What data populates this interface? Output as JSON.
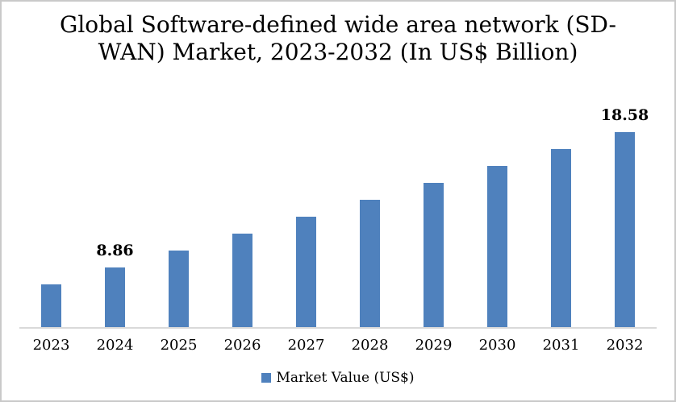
{
  "chart_data": {
    "type": "bar",
    "title": "Global Software-defined wide area network (SD-WAN) Market, 2023-2032 (In US$ Billion)",
    "title_lines": [
      "Global Software-defined wide area network (SD-",
      "WAN) Market, 2023-2032 (In US$ Billion)"
    ],
    "categories": [
      "2023",
      "2024",
      "2025",
      "2026",
      "2027",
      "2028",
      "2029",
      "2030",
      "2031",
      "2032"
    ],
    "series": [
      {
        "name": "Market Value (US$)",
        "values": [
          7.65,
          8.86,
          10.08,
          11.29,
          12.51,
          13.72,
          14.94,
          16.15,
          17.37,
          18.58
        ]
      }
    ],
    "point_labels": [
      "",
      "8.86",
      "",
      "",
      "",
      "",
      "",
      "",
      "",
      "18.58"
    ],
    "labeled_points": {
      "2024": "8.86",
      "2032": "18.58"
    },
    "xlabel": "",
    "ylabel": "",
    "ylim": [
      4.58,
      20
    ],
    "grid": false,
    "y_axis_visible": false,
    "bar_color": "#4f81bd",
    "axis_line_color": "#d9d9d9",
    "text_color": "#000000",
    "legend": {
      "position": "bottom",
      "label": "Market Value (US$)",
      "marker_color": "#4f81bd"
    }
  }
}
